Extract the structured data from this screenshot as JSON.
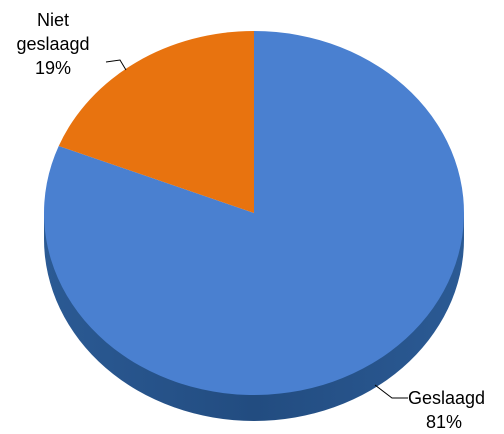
{
  "chart_data": {
    "type": "pie",
    "categories": [
      "Geslaagd",
      "Niet geslaagd"
    ],
    "values": [
      81,
      19
    ],
    "value_labels": [
      "81%",
      "19%"
    ],
    "colors": [
      "#4a80d0",
      "#e8730f"
    ]
  }
}
